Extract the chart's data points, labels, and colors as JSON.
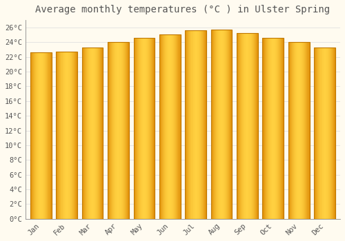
{
  "title": "Average monthly temperatures (°C ) in Ulster Spring",
  "months": [
    "Jan",
    "Feb",
    "Mar",
    "Apr",
    "May",
    "Jun",
    "Jul",
    "Aug",
    "Sep",
    "Oct",
    "Nov",
    "Dec"
  ],
  "values": [
    22.6,
    22.7,
    23.3,
    24.0,
    24.6,
    25.0,
    25.6,
    25.7,
    25.2,
    24.6,
    24.0,
    23.3
  ],
  "bar_color_left": "#E8A020",
  "bar_color_center": "#FFD040",
  "bar_color_right": "#E8A020",
  "bar_edge_color": "#C07800",
  "background_color": "#FFFBF0",
  "grid_color": "#E0E0E0",
  "text_color": "#555555",
  "ylim": [
    0,
    27
  ],
  "yticks": [
    0,
    2,
    4,
    6,
    8,
    10,
    12,
    14,
    16,
    18,
    20,
    22,
    24,
    26
  ],
  "title_fontsize": 10,
  "tick_fontsize": 7.5,
  "bar_width": 0.82
}
